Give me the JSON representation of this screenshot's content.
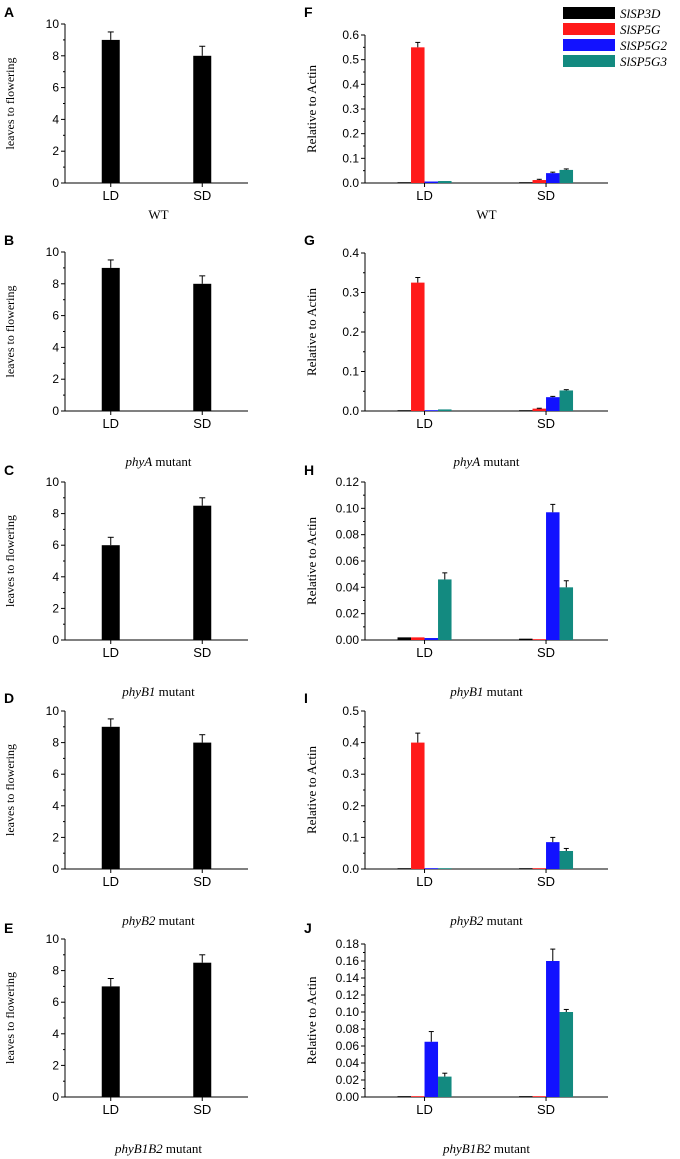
{
  "figure": {
    "legend": [
      {
        "name": "SlSP3D",
        "color": "#000000"
      },
      {
        "name": "SlSP5G",
        "color": "#ff1a1a"
      },
      {
        "name": "SlSP5G2",
        "color": "#1212ff"
      },
      {
        "name": "SlSP5G3",
        "color": "#138a80"
      }
    ]
  },
  "chart_data": [
    {
      "panel": "A",
      "type": "bar",
      "title": "WT",
      "ylabel": "leaves to flowering",
      "categories": [
        "LD",
        "SD"
      ],
      "ylim": [
        0,
        10
      ],
      "yticks": [
        "0",
        "2",
        "4",
        "6",
        "8",
        "10"
      ],
      "values": [
        9,
        8
      ],
      "errors": [
        0.5,
        0.6
      ]
    },
    {
      "panel": "B",
      "type": "bar",
      "title": "phyA mutant",
      "title_italic": "phyA",
      "title_rest": " mutant",
      "ylabel": "leaves to flowering",
      "categories": [
        "LD",
        "SD"
      ],
      "ylim": [
        0,
        10
      ],
      "yticks": [
        "0",
        "2",
        "4",
        "6",
        "8",
        "10"
      ],
      "values": [
        9,
        8
      ],
      "errors": [
        0.5,
        0.5
      ]
    },
    {
      "panel": "C",
      "type": "bar",
      "title": "phyB1 mutant",
      "title_italic": "phyB1",
      "title_rest": " mutant",
      "ylabel": "leaves to flowering",
      "categories": [
        "LD",
        "SD"
      ],
      "ylim": [
        0,
        10
      ],
      "yticks": [
        "0",
        "2",
        "4",
        "6",
        "8",
        "10"
      ],
      "values": [
        6,
        8.5
      ],
      "errors": [
        0.5,
        0.5
      ]
    },
    {
      "panel": "D",
      "type": "bar",
      "title": "phyB2 mutant",
      "title_italic": "phyB2",
      "title_rest": " mutant",
      "ylabel": "leaves to flowering",
      "categories": [
        "LD",
        "SD"
      ],
      "ylim": [
        0,
        10
      ],
      "yticks": [
        "0",
        "2",
        "4",
        "6",
        "8",
        "10"
      ],
      "values": [
        9,
        8
      ],
      "errors": [
        0.5,
        0.5
      ]
    },
    {
      "panel": "E",
      "type": "bar",
      "title": "phyB1B2 mutant",
      "title_italic": "phyB1B2",
      "title_rest": " mutant",
      "ylabel": "leaves to flowering",
      "categories": [
        "LD",
        "SD"
      ],
      "ylim": [
        0,
        10
      ],
      "yticks": [
        "0",
        "2",
        "4",
        "6",
        "8",
        "10"
      ],
      "values": [
        7,
        8.5
      ],
      "errors": [
        0.5,
        0.5
      ]
    },
    {
      "panel": "F",
      "type": "bar",
      "title": "WT",
      "ylabel": "Relative to Actin",
      "categories": [
        "LD",
        "SD"
      ],
      "ylim": [
        0,
        0.6
      ],
      "yticks": [
        "0.0",
        "0.1",
        "0.2",
        "0.3",
        "0.4",
        "0.5",
        "0.6"
      ],
      "series": [
        {
          "name": "SlSP3D",
          "values": [
            0.002,
            0.002
          ],
          "errors": [
            0,
            0
          ]
        },
        {
          "name": "SlSP5G",
          "values": [
            0.55,
            0.012
          ],
          "errors": [
            0.02,
            0.003
          ]
        },
        {
          "name": "SlSP5G2",
          "values": [
            0.006,
            0.04
          ],
          "errors": [
            0,
            0.004
          ]
        },
        {
          "name": "SlSP5G3",
          "values": [
            0.008,
            0.053
          ],
          "errors": [
            0,
            0.004
          ]
        }
      ]
    },
    {
      "panel": "G",
      "type": "bar",
      "title": "phyA mutant",
      "title_italic": "phyA",
      "title_rest": " mutant",
      "ylabel": "Relative to Actin",
      "categories": [
        "LD",
        "SD"
      ],
      "ylim": [
        0,
        0.4
      ],
      "yticks": [
        "0.0",
        "0.1",
        "0.2",
        "0.3",
        "0.4"
      ],
      "series": [
        {
          "name": "SlSP3D",
          "values": [
            0.002,
            0.002
          ],
          "errors": [
            0,
            0
          ]
        },
        {
          "name": "SlSP5G",
          "values": [
            0.325,
            0.006
          ],
          "errors": [
            0.013,
            0.001
          ]
        },
        {
          "name": "SlSP5G2",
          "values": [
            0.002,
            0.035
          ],
          "errors": [
            0,
            0.002
          ]
        },
        {
          "name": "SlSP5G3",
          "values": [
            0.004,
            0.052
          ],
          "errors": [
            0,
            0.002
          ]
        }
      ]
    },
    {
      "panel": "H",
      "type": "bar",
      "title": "phyB1 mutant",
      "title_italic": "phyB1",
      "title_rest": " mutant",
      "ylabel": "Relative to Actin",
      "categories": [
        "LD",
        "SD"
      ],
      "ylim": [
        0,
        0.12
      ],
      "yticks": [
        "0.00",
        "0.02",
        "0.04",
        "0.06",
        "0.08",
        "0.10",
        "0.12"
      ],
      "series": [
        {
          "name": "SlSP3D",
          "values": [
            0.002,
            0.001
          ],
          "errors": [
            0,
            0
          ]
        },
        {
          "name": "SlSP5G",
          "values": [
            0.002,
            0.0005
          ],
          "errors": [
            0,
            0
          ]
        },
        {
          "name": "SlSP5G2",
          "values": [
            0.0015,
            0.097
          ],
          "errors": [
            0,
            0.006
          ]
        },
        {
          "name": "SlSP5G3",
          "values": [
            0.046,
            0.04
          ],
          "errors": [
            0.005,
            0.005
          ]
        }
      ]
    },
    {
      "panel": "I",
      "type": "bar",
      "title": "phyB2 mutant",
      "title_italic": "phyB2",
      "title_rest": " mutant",
      "ylabel": "Relative to Actin",
      "categories": [
        "LD",
        "SD"
      ],
      "ylim": [
        0,
        0.5
      ],
      "yticks": [
        "0.0",
        "0.1",
        "0.2",
        "0.3",
        "0.4",
        "0.5"
      ],
      "series": [
        {
          "name": "SlSP3D",
          "values": [
            0.001,
            0.001
          ],
          "errors": [
            0,
            0
          ]
        },
        {
          "name": "SlSP5G",
          "values": [
            0.4,
            0.001
          ],
          "errors": [
            0.03,
            0
          ]
        },
        {
          "name": "SlSP5G2",
          "values": [
            0.001,
            0.085
          ],
          "errors": [
            0,
            0.015
          ]
        },
        {
          "name": "SlSP5G3",
          "values": [
            0.002,
            0.057
          ],
          "errors": [
            0,
            0.008
          ]
        }
      ]
    },
    {
      "panel": "J",
      "type": "bar",
      "title": "phyB1B2 mutant",
      "title_italic": "phyB1B2",
      "title_rest": " mutant",
      "ylabel": "Relative to Actin",
      "categories": [
        "LD",
        "SD"
      ],
      "ylim": [
        0,
        0.18
      ],
      "yticks": [
        "0.00",
        "0.02",
        "0.04",
        "0.06",
        "0.08",
        "0.10",
        "0.12",
        "0.14",
        "0.16",
        "0.18"
      ],
      "series": [
        {
          "name": "SlSP3D",
          "values": [
            0.001,
            0.001
          ],
          "errors": [
            0,
            0
          ]
        },
        {
          "name": "SlSP5G",
          "values": [
            0.0,
            0.0
          ],
          "errors": [
            0,
            0
          ]
        },
        {
          "name": "SlSP5G2",
          "values": [
            0.065,
            0.16
          ],
          "errors": [
            0.012,
            0.014
          ]
        },
        {
          "name": "SlSP5G3",
          "values": [
            0.024,
            0.1
          ],
          "errors": [
            0.004,
            0.003
          ]
        }
      ]
    }
  ]
}
